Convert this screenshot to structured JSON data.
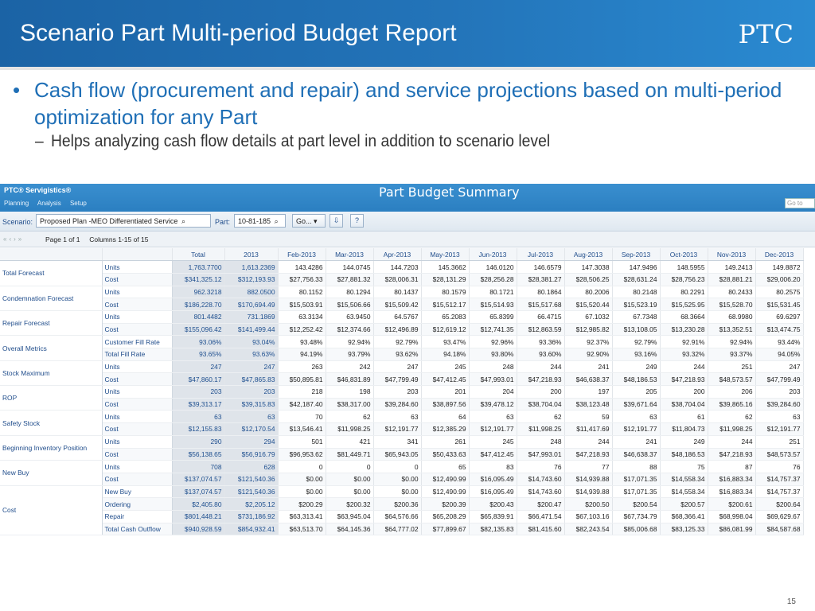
{
  "slide": {
    "title": "Scenario Part Multi-period Budget Report",
    "logo": "PTC",
    "page_number": "15",
    "bullet_main": "Cash flow (procurement and repair) and service projections based on multi-period optimization for any Part",
    "bullet_sub": "Helps analyzing cash flow details at part level in addition to scenario level"
  },
  "app": {
    "brand": "PTC® Servigistics®",
    "menu": [
      "Planning",
      "Analysis",
      "Setup"
    ],
    "page_title": "Part Budget Summary",
    "goto_placeholder": "Go to",
    "scenario_label": "Scenario:",
    "scenario_value": "Proposed Plan -MEO Differentiated Service",
    "part_label": "Part:",
    "part_value": "10-81-185",
    "go_label": "Go...",
    "pager_page": "Page 1 of 1",
    "pager_columns": "Columns 1-15 of 15"
  },
  "table": {
    "headers": [
      "Total",
      "2013",
      "Feb-2013",
      "Mar-2013",
      "Apr-2013",
      "May-2013",
      "Jun-2013",
      "Jul-2013",
      "Aug-2013",
      "Sep-2013",
      "Oct-2013",
      "Nov-2013",
      "Dec-2013"
    ],
    "groups": [
      {
        "name": "Total Forecast",
        "rows": [
          {
            "metric": "Units",
            "values": [
              "1,763.7700",
              "1,613.2369",
              "143.4286",
              "144.0745",
              "144.7203",
              "145.3662",
              "146.0120",
              "146.6579",
              "147.3038",
              "147.9496",
              "148.5955",
              "149.2413",
              "149.8872"
            ]
          },
          {
            "metric": "Cost",
            "values": [
              "$341,325.12",
              "$312,193.93",
              "$27,756.33",
              "$27,881.32",
              "$28,006.31",
              "$28,131.29",
              "$28,256.28",
              "$28,381.27",
              "$28,506.25",
              "$28,631.24",
              "$28,756.23",
              "$28,881.21",
              "$29,006.20"
            ]
          }
        ]
      },
      {
        "name": "Condemnation Forecast",
        "rows": [
          {
            "metric": "Units",
            "values": [
              "962.3218",
              "882.0500",
              "80.1152",
              "80.1294",
              "80.1437",
              "80.1579",
              "80.1721",
              "80.1864",
              "80.2006",
              "80.2148",
              "80.2291",
              "80.2433",
              "80.2575"
            ]
          },
          {
            "metric": "Cost",
            "values": [
              "$186,228.70",
              "$170,694.49",
              "$15,503.91",
              "$15,506.66",
              "$15,509.42",
              "$15,512.17",
              "$15,514.93",
              "$15,517.68",
              "$15,520.44",
              "$15,523.19",
              "$15,525.95",
              "$15,528.70",
              "$15,531.45"
            ]
          }
        ]
      },
      {
        "name": "Repair Forecast",
        "rows": [
          {
            "metric": "Units",
            "values": [
              "801.4482",
              "731.1869",
              "63.3134",
              "63.9450",
              "64.5767",
              "65.2083",
              "65.8399",
              "66.4715",
              "67.1032",
              "67.7348",
              "68.3664",
              "68.9980",
              "69.6297"
            ]
          },
          {
            "metric": "Cost",
            "values": [
              "$155,096.42",
              "$141,499.44",
              "$12,252.42",
              "$12,374.66",
              "$12,496.89",
              "$12,619.12",
              "$12,741.35",
              "$12,863.59",
              "$12,985.82",
              "$13,108.05",
              "$13,230.28",
              "$13,352.51",
              "$13,474.75"
            ]
          }
        ]
      },
      {
        "name": "Overall Metrics",
        "rows": [
          {
            "metric": "Customer Fill Rate",
            "values": [
              "93.06%",
              "93.04%",
              "93.48%",
              "92.94%",
              "92.79%",
              "93.47%",
              "92.96%",
              "93.36%",
              "92.37%",
              "92.79%",
              "92.91%",
              "92.94%",
              "93.44%"
            ]
          },
          {
            "metric": "Total Fill Rate",
            "values": [
              "93.65%",
              "93.63%",
              "94.19%",
              "93.79%",
              "93.62%",
              "94.18%",
              "93.80%",
              "93.60%",
              "92.90%",
              "93.16%",
              "93.32%",
              "93.37%",
              "94.05%"
            ]
          }
        ]
      },
      {
        "name": "Stock Maximum",
        "rows": [
          {
            "metric": "Units",
            "values": [
              "247",
              "247",
              "263",
              "242",
              "247",
              "245",
              "248",
              "244",
              "241",
              "249",
              "244",
              "251",
              "247"
            ]
          },
          {
            "metric": "Cost",
            "values": [
              "$47,860.17",
              "$47,865.83",
              "$50,895.81",
              "$46,831.89",
              "$47,799.49",
              "$47,412.45",
              "$47,993.01",
              "$47,218.93",
              "$46,638.37",
              "$48,186.53",
              "$47,218.93",
              "$48,573.57",
              "$47,799.49"
            ]
          }
        ]
      },
      {
        "name": "ROP",
        "rows": [
          {
            "metric": "Units",
            "values": [
              "203",
              "203",
              "218",
              "198",
              "203",
              "201",
              "204",
              "200",
              "197",
              "205",
              "200",
              "206",
              "203"
            ]
          },
          {
            "metric": "Cost",
            "values": [
              "$39,313.17",
              "$39,315.83",
              "$42,187.40",
              "$38,317.00",
              "$39,284.60",
              "$38,897.56",
              "$39,478.12",
              "$38,704.04",
              "$38,123.48",
              "$39,671.64",
              "$38,704.04",
              "$39,865.16",
              "$39,284.60"
            ]
          }
        ]
      },
      {
        "name": "Safety Stock",
        "rows": [
          {
            "metric": "Units",
            "values": [
              "63",
              "63",
              "70",
              "62",
              "63",
              "64",
              "63",
              "62",
              "59",
              "63",
              "61",
              "62",
              "63"
            ]
          },
          {
            "metric": "Cost",
            "values": [
              "$12,155.83",
              "$12,170.54",
              "$13,546.41",
              "$11,998.25",
              "$12,191.77",
              "$12,385.29",
              "$12,191.77",
              "$11,998.25",
              "$11,417.69",
              "$12,191.77",
              "$11,804.73",
              "$11,998.25",
              "$12,191.77"
            ]
          }
        ]
      },
      {
        "name": "Beginning Inventory Position",
        "rows": [
          {
            "metric": "Units",
            "values": [
              "290",
              "294",
              "501",
              "421",
              "341",
              "261",
              "245",
              "248",
              "244",
              "241",
              "249",
              "244",
              "251"
            ]
          },
          {
            "metric": "Cost",
            "values": [
              "$56,138.65",
              "$56,916.79",
              "$96,953.62",
              "$81,449.71",
              "$65,943.05",
              "$50,433.63",
              "$47,412.45",
              "$47,993.01",
              "$47,218.93",
              "$46,638.37",
              "$48,186.53",
              "$47,218.93",
              "$48,573.57"
            ]
          }
        ]
      },
      {
        "name": "New Buy",
        "rows": [
          {
            "metric": "Units",
            "values": [
              "708",
              "628",
              "0",
              "0",
              "0",
              "65",
              "83",
              "76",
              "77",
              "88",
              "75",
              "87",
              "76"
            ]
          },
          {
            "metric": "Cost",
            "values": [
              "$137,074.57",
              "$121,540.36",
              "$0.00",
              "$0.00",
              "$0.00",
              "$12,490.99",
              "$16,095.49",
              "$14,743.60",
              "$14,939.88",
              "$17,071.35",
              "$14,558.34",
              "$16,883.34",
              "$14,757.37"
            ]
          }
        ]
      },
      {
        "name": "Cost",
        "rows": [
          {
            "metric": "New Buy",
            "values": [
              "$137,074.57",
              "$121,540.36",
              "$0.00",
              "$0.00",
              "$0.00",
              "$12,490.99",
              "$16,095.49",
              "$14,743.60",
              "$14,939.88",
              "$17,071.35",
              "$14,558.34",
              "$16,883.34",
              "$14,757.37"
            ]
          },
          {
            "metric": "Ordering",
            "values": [
              "$2,405.80",
              "$2,205.12",
              "$200.29",
              "$200.32",
              "$200.36",
              "$200.39",
              "$200.43",
              "$200.47",
              "$200.50",
              "$200.54",
              "$200.57",
              "$200.61",
              "$200.64"
            ]
          },
          {
            "metric": "Repair",
            "values": [
              "$801,448.21",
              "$731,186.92",
              "$63,313.41",
              "$63,945.04",
              "$64,576.66",
              "$65,208.29",
              "$65,839.91",
              "$66,471.54",
              "$67,103.16",
              "$67,734.79",
              "$68,366.41",
              "$68,998.04",
              "$69,629.67"
            ]
          },
          {
            "metric": "Total Cash Outflow",
            "values": [
              "$940,928.59",
              "$854,932.41",
              "$63,513.70",
              "$64,145.36",
              "$64,777.02",
              "$77,899.67",
              "$82,135.83",
              "$81,415.60",
              "$82,243.54",
              "$85,006.68",
              "$83,125.33",
              "$86,081.99",
              "$84,587.68"
            ]
          }
        ]
      }
    ]
  }
}
